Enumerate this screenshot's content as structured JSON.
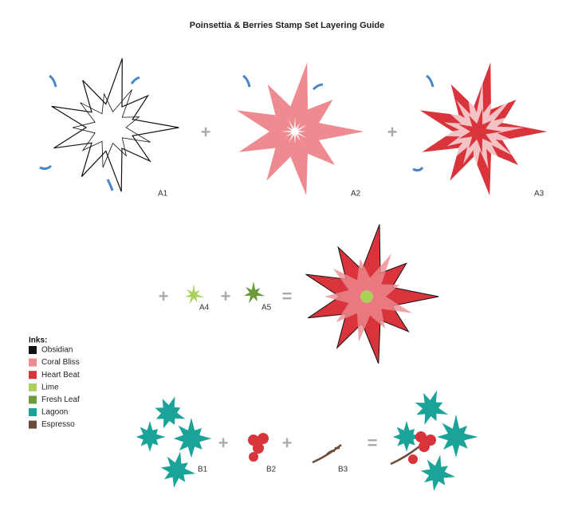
{
  "title": "Poinsettia & Berries Stamp Set Layering Guide",
  "row_a": [
    {
      "label": "A1"
    },
    {
      "operator": "+"
    },
    {
      "label": "A2"
    },
    {
      "operator": "+"
    },
    {
      "label": "A3"
    }
  ],
  "row_a2": [
    {
      "operator": "+"
    },
    {
      "label": "A4"
    },
    {
      "operator": "+"
    },
    {
      "label": "A5"
    },
    {
      "operator": "="
    }
  ],
  "row_b": [
    {
      "label": "B1"
    },
    {
      "operator": "+"
    },
    {
      "label": "B2"
    },
    {
      "operator": "+"
    },
    {
      "label": "B3"
    },
    {
      "operator": "="
    }
  ],
  "inks": {
    "heading": "Inks:",
    "items": [
      {
        "name": "Obsidian",
        "color": "#111111"
      },
      {
        "name": "Coral Bliss",
        "color": "#ee8b91"
      },
      {
        "name": "Heart Beat",
        "color": "#d9343b"
      },
      {
        "name": "Lime",
        "color": "#a9d15a"
      },
      {
        "name": "Fresh Leaf",
        "color": "#6a9a3b"
      },
      {
        "name": "Lagoon",
        "color": "#1aa399"
      },
      {
        "name": "Espresso",
        "color": "#6b4a3a"
      }
    ]
  }
}
